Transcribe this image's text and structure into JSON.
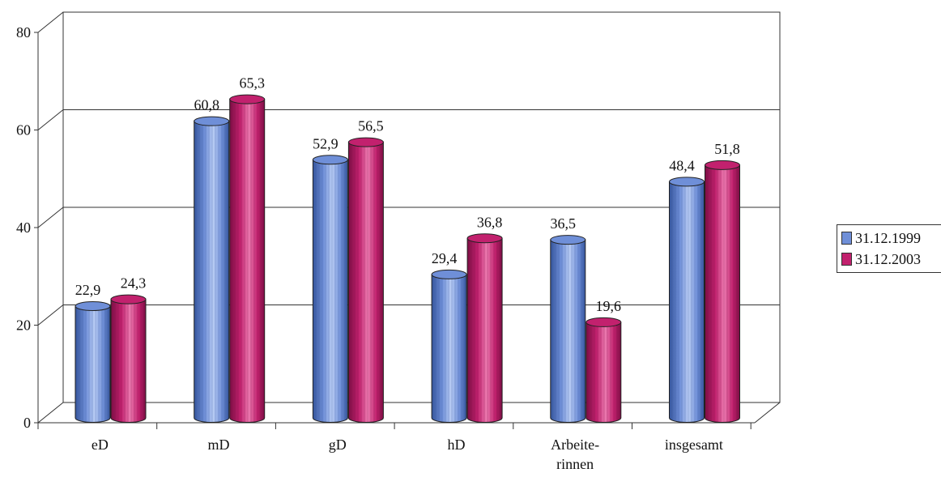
{
  "chart_data": {
    "type": "bar",
    "categories": [
      "eD",
      "mD",
      "gD",
      "hD",
      "Arbeite-\nrinnen",
      "insgesamt"
    ],
    "series": [
      {
        "name": "31.12.1999",
        "values": [
          22.9,
          60.8,
          52.9,
          29.4,
          36.5,
          48.4
        ]
      },
      {
        "name": "31.12.2003",
        "values": [
          24.3,
          65.3,
          56.5,
          36.8,
          19.6,
          51.8
        ]
      }
    ],
    "value_labels": [
      [
        "22,9",
        "60,8",
        "52,9",
        "29,4",
        "36,5",
        "48,4"
      ],
      [
        "24,3",
        "65,3",
        "56,5",
        "36,8",
        "19,6",
        "51,8"
      ]
    ],
    "ylim": [
      0,
      80
    ],
    "yticks": [
      "0",
      "20",
      "40",
      "60",
      "80"
    ],
    "grid": true,
    "legend": "right",
    "bar_shape": "cylinder",
    "colors": {
      "series_1999": "#6f8fd8",
      "series_2003": "#c2216e"
    }
  },
  "legend": {
    "items": [
      {
        "label": "31.12.1999",
        "color": "#6f8fd8"
      },
      {
        "label": "31.12.2003",
        "color": "#c2216e"
      }
    ]
  }
}
